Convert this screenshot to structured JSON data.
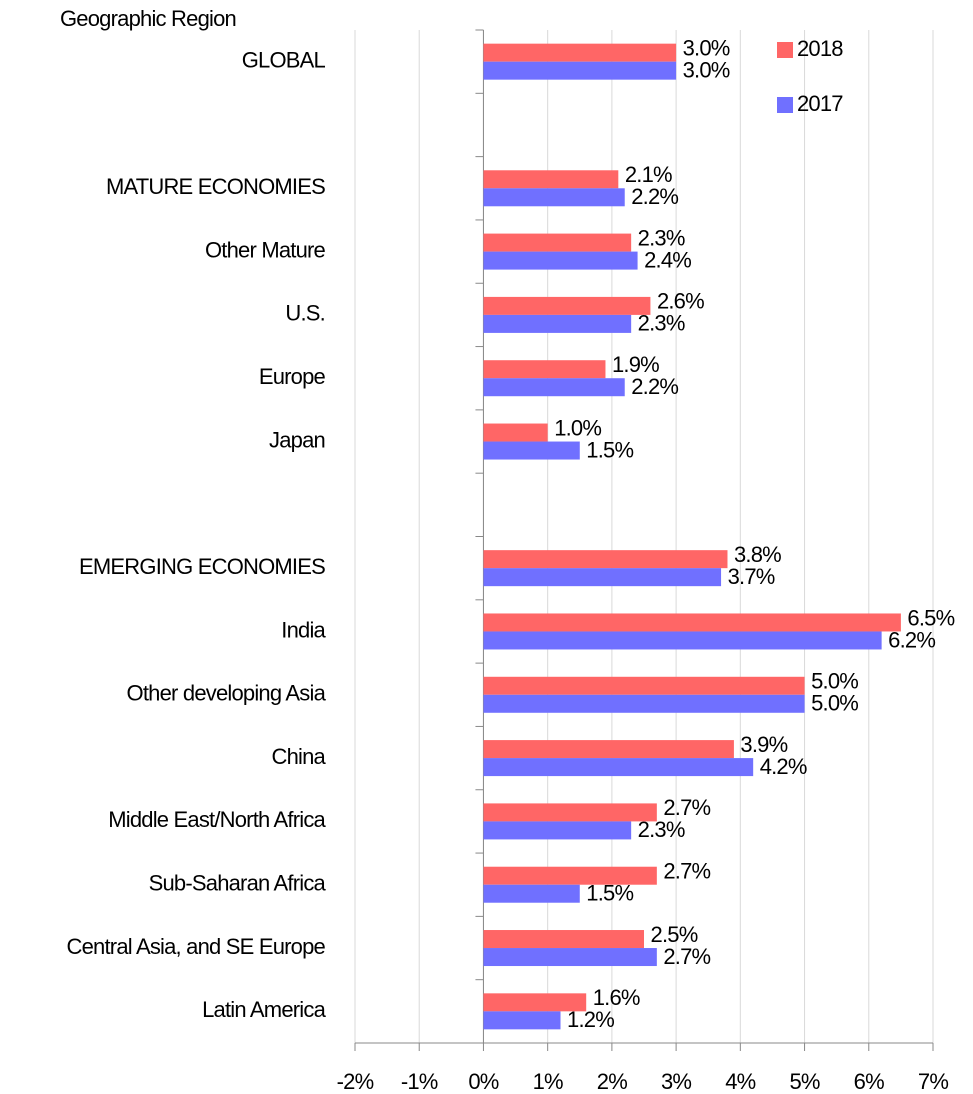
{
  "chart_data": {
    "type": "bar",
    "orientation": "horizontal",
    "ylabel": "Geographic Region",
    "categories": [
      "GLOBAL",
      null,
      "MATURE ECONOMIES",
      "Other Mature",
      "U.S.",
      "Europe",
      "Japan",
      null,
      "EMERGING ECONOMIES",
      "India",
      "Other developing Asia",
      "China",
      "Middle East/North Africa",
      "Sub-Saharan Africa",
      "Central Asia, and SE Europe",
      "Latin America"
    ],
    "series": [
      {
        "name": "2018",
        "color": "#ff6666",
        "values": [
          3.0,
          null,
          2.1,
          2.3,
          2.6,
          1.9,
          1.0,
          null,
          3.8,
          6.5,
          5.0,
          3.9,
          2.7,
          2.7,
          2.5,
          1.6
        ],
        "value_labels": [
          "3.0%",
          null,
          "2.1%",
          "2.3%",
          "2.6%",
          "1.9%",
          "1.0%",
          null,
          "3.8%",
          "6.5%",
          "5.0%",
          "3.9%",
          "2.7%",
          "2.7%",
          "2.5%",
          "1.6%"
        ]
      },
      {
        "name": "2017",
        "color": "#7070ff",
        "values": [
          3.0,
          null,
          2.2,
          2.4,
          2.3,
          2.2,
          1.5,
          null,
          3.7,
          6.2,
          5.0,
          4.2,
          2.3,
          1.5,
          2.7,
          1.2
        ],
        "value_labels": [
          "3.0%",
          null,
          "2.2%",
          "2.4%",
          "2.3%",
          "2.2%",
          "1.5%",
          null,
          "3.7%",
          "6.2%",
          "5.0%",
          "4.2%",
          "2.3%",
          "1.5%",
          "2.7%",
          "1.2%"
        ]
      }
    ],
    "xlim": [
      -2,
      7
    ],
    "xticks": [
      {
        "value": -2,
        "label": "-2%"
      },
      {
        "value": -1,
        "label": "-1%"
      },
      {
        "value": 0,
        "label": "0%"
      },
      {
        "value": 1,
        "label": "1%"
      },
      {
        "value": 2,
        "label": "2%"
      },
      {
        "value": 3,
        "label": "3%"
      },
      {
        "value": 4,
        "label": "4%"
      },
      {
        "value": 5,
        "label": "5%"
      },
      {
        "value": 6,
        "label": "6%"
      },
      {
        "value": 7,
        "label": "7%"
      }
    ],
    "grid": true,
    "legend": "upper right"
  }
}
